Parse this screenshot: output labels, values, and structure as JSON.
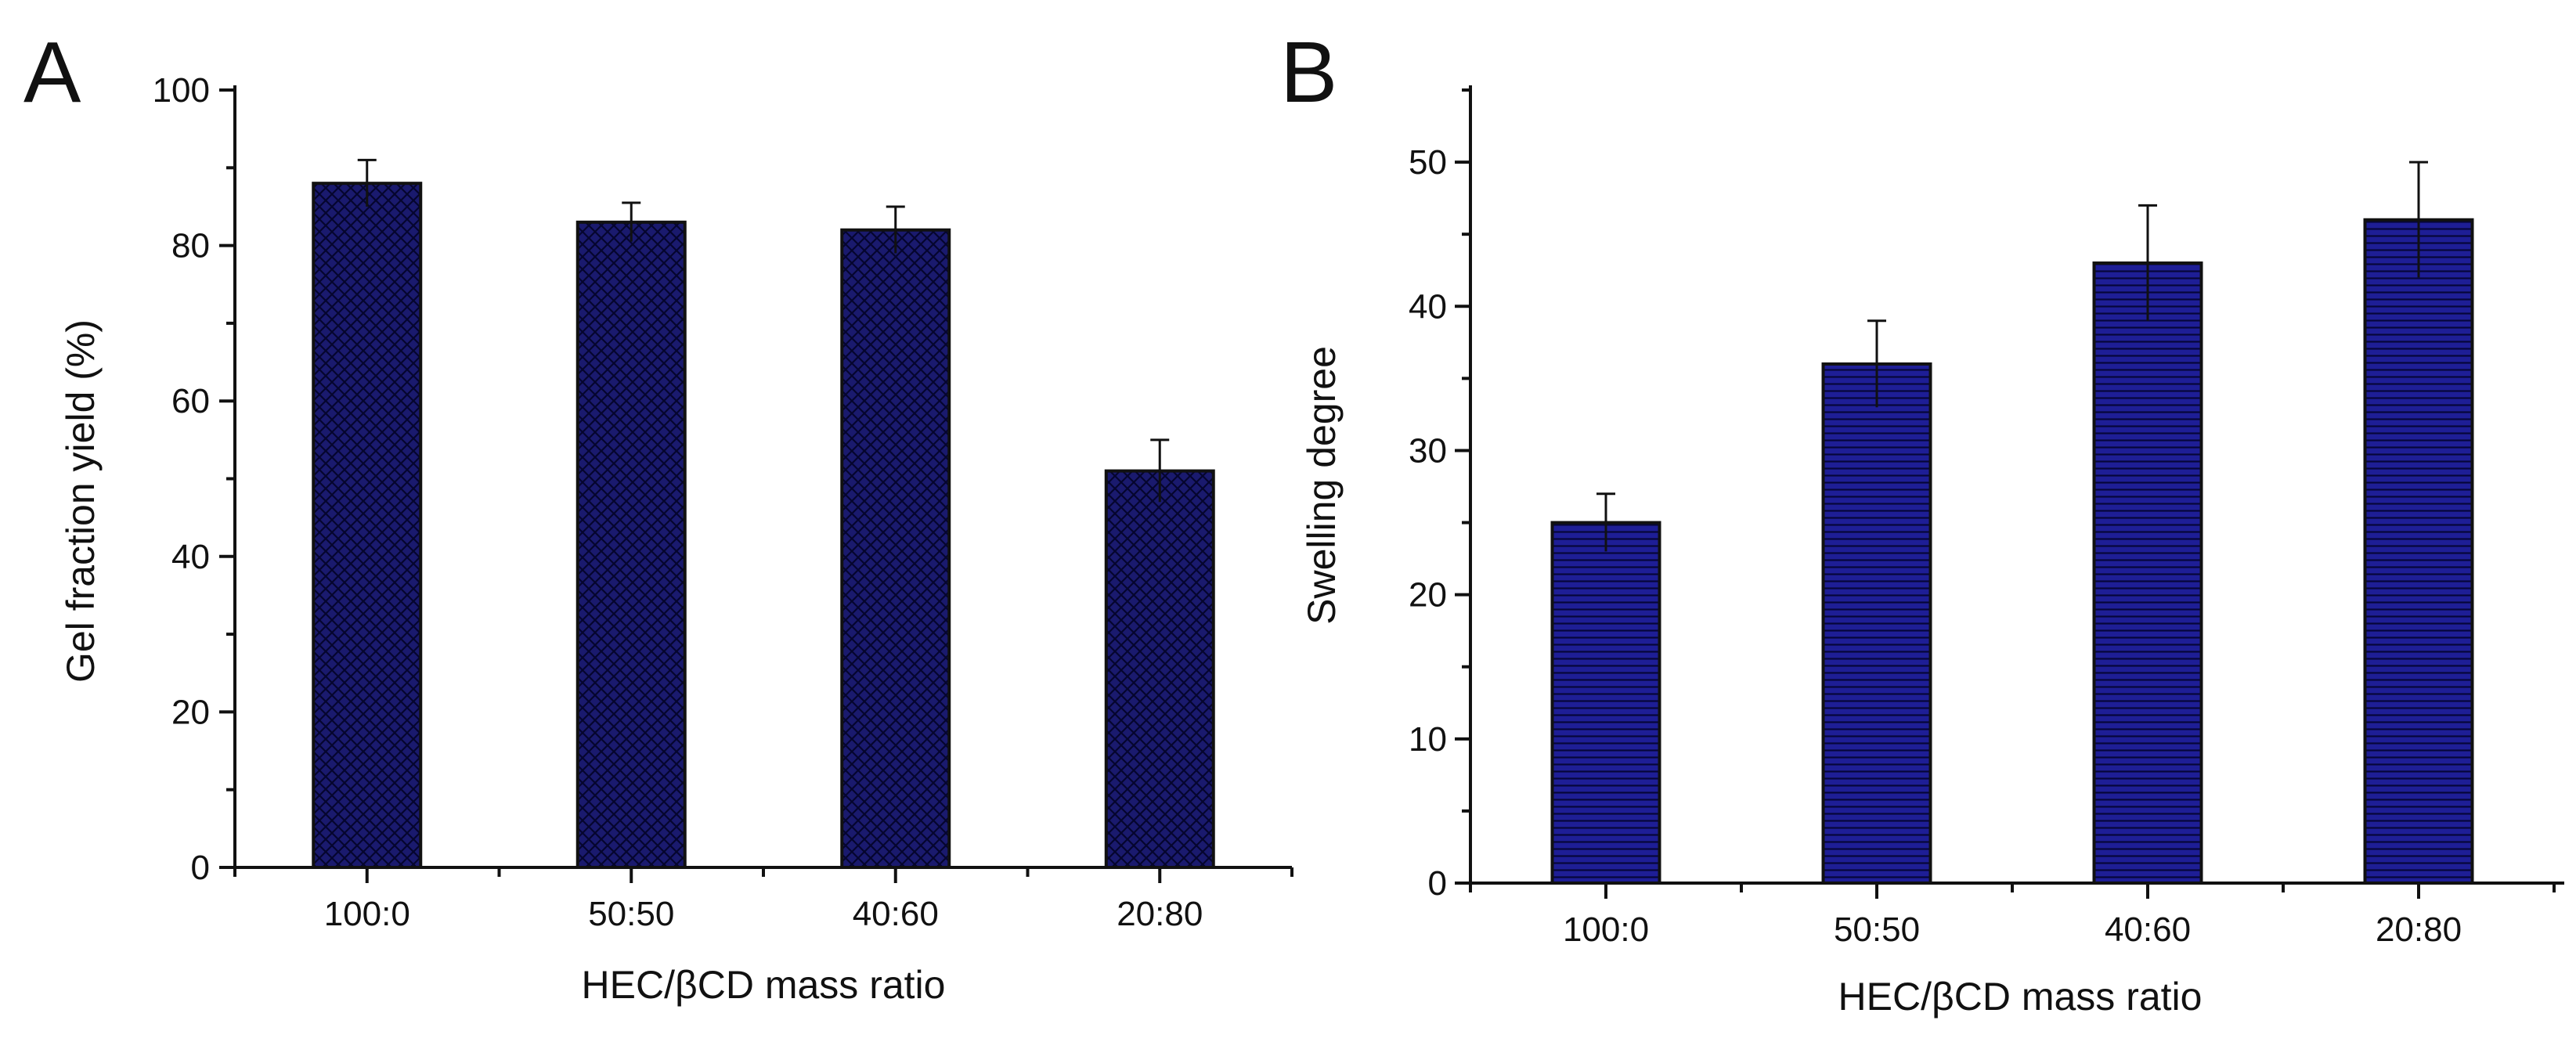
{
  "chart_data": [
    {
      "type": "bar",
      "panel": "A",
      "categories": [
        "100:0",
        "50:50",
        "40:60",
        "20:80"
      ],
      "values": [
        88,
        83,
        82,
        51
      ],
      "errors": [
        3,
        2.5,
        3,
        4
      ],
      "xlabel": "HEC/βCD mass ratio",
      "ylabel": "Gel fraction yield (%)",
      "ylim": [
        0,
        100
      ],
      "yticks": [
        0,
        20,
        40,
        60,
        80,
        100
      ],
      "bar_color": "#1a1a6e",
      "fill_pattern": "crosshatch",
      "grid": false,
      "legend": "none"
    },
    {
      "type": "bar",
      "panel": "B",
      "categories": [
        "100:0",
        "50:50",
        "40:60",
        "20:80"
      ],
      "values": [
        25,
        36,
        43,
        46
      ],
      "errors": [
        2,
        3,
        4,
        4
      ],
      "xlabel": "HEC/βCD mass ratio",
      "ylabel": "Swelling degree",
      "ylim": [
        0,
        55
      ],
      "yticks": [
        0,
        10,
        20,
        30,
        40,
        50
      ],
      "bar_color": "#1c1c8c",
      "fill_pattern": "horizontal-lines",
      "grid": false,
      "legend": "none"
    }
  ]
}
